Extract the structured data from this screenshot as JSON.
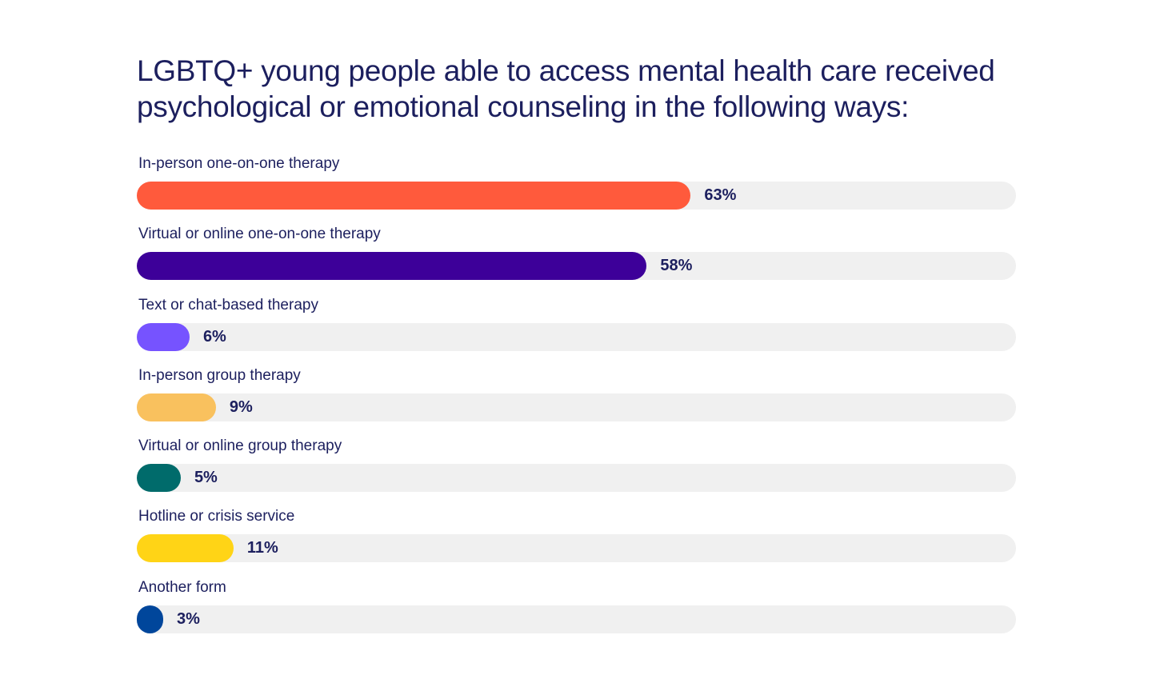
{
  "chart_data": {
    "type": "bar",
    "orientation": "horizontal",
    "title": "LGBTQ+ young people able to access mental health care received psychological or emotional counseling in the following ways:",
    "xlim": [
      0,
      100
    ],
    "grid": false,
    "categories": [
      "In-person one-on-one therapy",
      "Virtual or online one-on-one therapy",
      "Text or chat-based therapy",
      "In-person group therapy",
      "Virtual or online group therapy",
      "Hotline or crisis service",
      "Another form"
    ],
    "values": [
      63,
      58,
      6,
      9,
      5,
      11,
      3
    ],
    "value_labels": [
      "63%",
      "58%",
      "6%",
      "9%",
      "5%",
      "11%",
      "3%"
    ],
    "colors": [
      "#ff5a3c",
      "#3d0099",
      "#7653ff",
      "#f9c15e",
      "#006b6b",
      "#ffd416",
      "#00469b"
    ],
    "track_color": "#f0f0f0",
    "text_color": "#1c1f5e"
  }
}
